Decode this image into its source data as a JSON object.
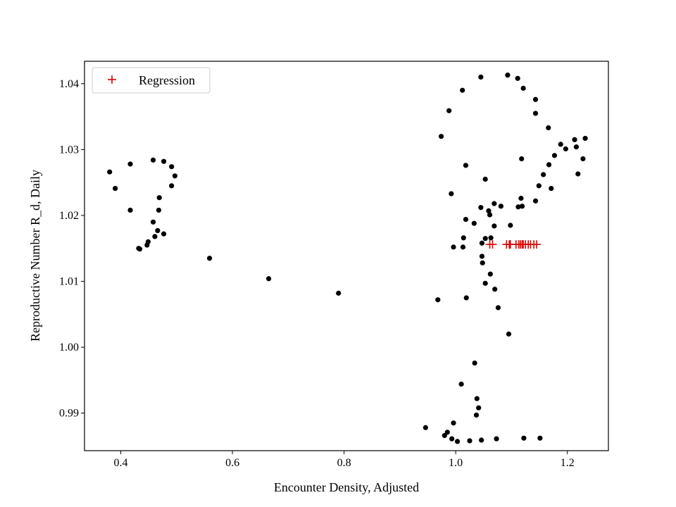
{
  "chart_data": {
    "type": "scatter",
    "title": "",
    "xlabel": "Encounter Density, Adjusted",
    "ylabel": "Reproductive Number R_d, Daily",
    "xlim": [
      0.335,
      1.2735
    ],
    "ylim": [
      0.9843,
      1.0434
    ],
    "xticks": [
      0.4,
      0.6,
      0.8,
      1.0,
      1.2
    ],
    "xtick_labels": [
      "0.4",
      "0.6",
      "0.8",
      "1.0",
      "1.2"
    ],
    "yticks": [
      0.99,
      1.0,
      1.01,
      1.02,
      1.03,
      1.04
    ],
    "ytick_labels": [
      "0.99",
      "1.00",
      "1.01",
      "1.02",
      "1.03",
      "1.04"
    ],
    "grid": false,
    "legend_position": "upper-left",
    "series": [
      {
        "kind": "points",
        "marker": "dot",
        "color": "#000000",
        "points": [
          [
            0.38,
            1.0266
          ],
          [
            0.39,
            1.0241
          ],
          [
            0.417,
            1.0278
          ],
          [
            0.417,
            1.0208
          ],
          [
            0.432,
            1.015
          ],
          [
            0.434,
            1.0149
          ],
          [
            0.447,
            1.0155
          ],
          [
            0.449,
            1.016
          ],
          [
            0.458,
            1.0284
          ],
          [
            0.458,
            1.019
          ],
          [
            0.461,
            1.0168
          ],
          [
            0.466,
            1.0177
          ],
          [
            0.468,
            1.0208
          ],
          [
            0.469,
            1.0227
          ],
          [
            0.477,
            1.0282
          ],
          [
            0.477,
            1.0172
          ],
          [
            0.491,
            1.0274
          ],
          [
            0.491,
            1.0245
          ],
          [
            0.497,
            1.026
          ],
          [
            0.559,
            1.0135
          ],
          [
            0.665,
            1.0104
          ],
          [
            0.79,
            1.0082
          ],
          [
            0.946,
            0.9878
          ],
          [
            0.968,
            1.0072
          ],
          [
            0.974,
            1.032
          ],
          [
            0.98,
            0.9866
          ],
          [
            0.985,
            0.9871
          ],
          [
            0.988,
            1.0359
          ],
          [
            0.992,
            1.0233
          ],
          [
            0.993,
            0.9861
          ],
          [
            0.996,
            0.9885
          ],
          [
            0.996,
            1.0152
          ],
          [
            1.003,
            0.9857
          ],
          [
            1.01,
            0.9944
          ],
          [
            1.012,
            1.039
          ],
          [
            1.013,
            1.0152
          ],
          [
            1.014,
            1.0166
          ],
          [
            1.018,
            1.0276
          ],
          [
            1.018,
            1.0194
          ],
          [
            1.019,
            1.0075
          ],
          [
            1.025,
            0.9858
          ],
          [
            1.033,
            1.0188
          ],
          [
            1.034,
            0.9976
          ],
          [
            1.037,
            0.9897
          ],
          [
            1.038,
            0.9922
          ],
          [
            1.041,
            0.9908
          ],
          [
            1.045,
            1.041
          ],
          [
            1.045,
            1.0212
          ],
          [
            1.046,
            0.9859
          ],
          [
            1.047,
            1.0158
          ],
          [
            1.047,
            1.0138
          ],
          [
            1.048,
            1.0128
          ],
          [
            1.053,
            1.0255
          ],
          [
            1.053,
            1.0165
          ],
          [
            1.053,
            1.0097
          ],
          [
            1.059,
            1.0207
          ],
          [
            1.061,
            1.0201
          ],
          [
            1.062,
            1.0111
          ],
          [
            1.063,
            1.0166
          ],
          [
            1.069,
            1.0218
          ],
          [
            1.069,
            1.0184
          ],
          [
            1.07,
            1.0088
          ],
          [
            1.073,
            0.9861
          ],
          [
            1.076,
            1.006
          ],
          [
            1.081,
            1.0214
          ],
          [
            1.093,
            1.0413
          ],
          [
            1.095,
            1.002
          ],
          [
            1.098,
            1.0185
          ],
          [
            1.111,
            1.0408
          ],
          [
            1.112,
            1.0213
          ],
          [
            1.117,
            1.0226
          ],
          [
            1.118,
            1.0286
          ],
          [
            1.119,
            1.0214
          ],
          [
            1.121,
            1.0393
          ],
          [
            1.122,
            0.9862
          ],
          [
            1.143,
            1.0376
          ],
          [
            1.143,
            1.0355
          ],
          [
            1.143,
            1.0222
          ],
          [
            1.149,
            1.0245
          ],
          [
            1.151,
            0.9862
          ],
          [
            1.157,
            1.0262
          ],
          [
            1.166,
            1.0333
          ],
          [
            1.167,
            1.0277
          ],
          [
            1.171,
            1.0241
          ],
          [
            1.177,
            1.0291
          ],
          [
            1.188,
            1.0308
          ],
          [
            1.197,
            1.0301
          ],
          [
            1.213,
            1.0315
          ],
          [
            1.216,
            1.0304
          ],
          [
            1.219,
            1.0263
          ],
          [
            1.228,
            1.0286
          ],
          [
            1.232,
            1.0317
          ]
        ]
      },
      {
        "name": "Regression",
        "kind": "points",
        "marker": "plus",
        "color": "#e00000",
        "points": [
          [
            1.061,
            1.0156
          ],
          [
            1.066,
            1.0156
          ],
          [
            1.091,
            1.0156
          ],
          [
            1.096,
            1.0156
          ],
          [
            1.098,
            1.0156
          ],
          [
            1.108,
            1.0156
          ],
          [
            1.113,
            1.0156
          ],
          [
            1.116,
            1.0156
          ],
          [
            1.119,
            1.0156
          ],
          [
            1.121,
            1.0156
          ],
          [
            1.125,
            1.0156
          ],
          [
            1.13,
            1.0156
          ],
          [
            1.134,
            1.0156
          ],
          [
            1.14,
            1.0156
          ],
          [
            1.145,
            1.0156
          ]
        ]
      }
    ],
    "legend": [
      {
        "label": "Regression",
        "marker": "plus",
        "color": "#e00000"
      }
    ]
  }
}
